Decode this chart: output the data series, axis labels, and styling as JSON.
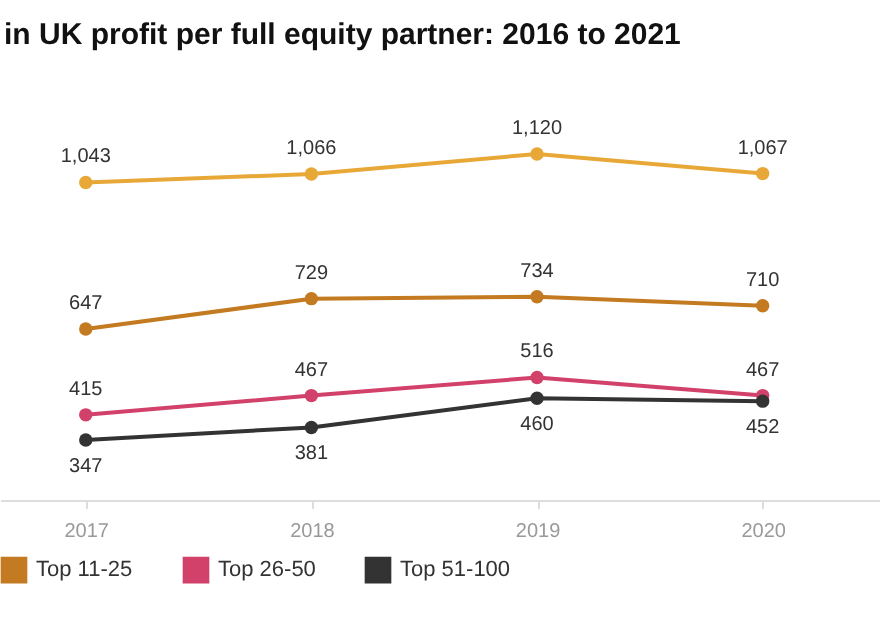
{
  "chart_data": {
    "type": "line",
    "title": "in UK profit per full equity partner: 2016 to 2021",
    "x": [
      2017,
      2018,
      2019,
      2020
    ],
    "xlim": [
      2016.62,
      2020.52
    ],
    "xticks": [
      2017,
      2018,
      2019,
      2020
    ],
    "series": [
      {
        "color": "#e8a838",
        "values": [
          1043,
          1066,
          1120,
          1067
        ],
        "value_labels": [
          "1,043",
          "1,066",
          "1,120",
          "1,067"
        ]
      },
      {
        "name": "Top 11-25",
        "color": "#c47a20",
        "values": [
          647,
          729,
          734,
          710
        ]
      },
      {
        "name": "Top 26-50",
        "color": "#d2416a",
        "values": [
          415,
          467,
          516,
          467
        ]
      },
      {
        "name": "Top 51-100",
        "color": "#333333",
        "values": [
          347,
          381,
          460,
          452
        ]
      }
    ],
    "data_labels": true,
    "marker": "circle",
    "line_style": "solid",
    "grid": false,
    "legend": "bottom"
  }
}
